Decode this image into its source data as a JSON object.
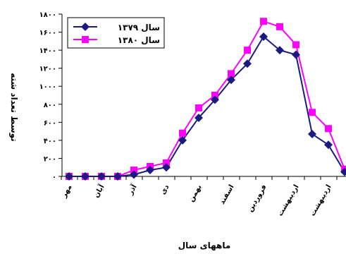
{
  "chart_data": {
    "type": "line",
    "title": "",
    "xlabel": "ماههای سال",
    "ylabel": "توسط تعداد شته",
    "ylim": [
      0,
      1800
    ],
    "yticks": [
      0,
      200,
      400,
      600,
      800,
      1000,
      1200,
      1400,
      1600,
      1800
    ],
    "ytick_labels": [
      "۰",
      "۲۰۰",
      "۴۰۰",
      "۶۰۰",
      "۸۰۰",
      "۱۰۰۰",
      "۱۲۰۰",
      "۱۴۰۰",
      "۱۶۰۰",
      "۱۸۰۰"
    ],
    "x_tick_labels": [
      {
        "index": 0,
        "label": "مهر"
      },
      {
        "index": 2,
        "label": "آبان"
      },
      {
        "index": 4,
        "label": "آذر"
      },
      {
        "index": 6,
        "label": "دی"
      },
      {
        "index": 8,
        "label": "بهمن"
      },
      {
        "index": 10,
        "label": "اسفند"
      },
      {
        "index": 12,
        "label": "فروردین"
      },
      {
        "index": 14,
        "label": "اردیبهشت"
      },
      {
        "index": 16,
        "label": "اردیبهشت"
      }
    ],
    "n_points": 18,
    "legend_position": "top-left",
    "grid": false,
    "series": [
      {
        "name": "سال ۱۳۷۹",
        "color": "#1a1a80",
        "marker": "diamond",
        "values": [
          0,
          0,
          0,
          0,
          20,
          70,
          100,
          400,
          650,
          850,
          1070,
          1250,
          1550,
          1400,
          1350,
          470,
          350,
          50
        ]
      },
      {
        "name": "سال ۱۳۸۰",
        "color": "#ff00ff",
        "marker": "square",
        "values": [
          0,
          0,
          0,
          0,
          70,
          110,
          150,
          480,
          760,
          900,
          1140,
          1400,
          1720,
          1660,
          1460,
          710,
          530,
          80
        ]
      }
    ]
  }
}
